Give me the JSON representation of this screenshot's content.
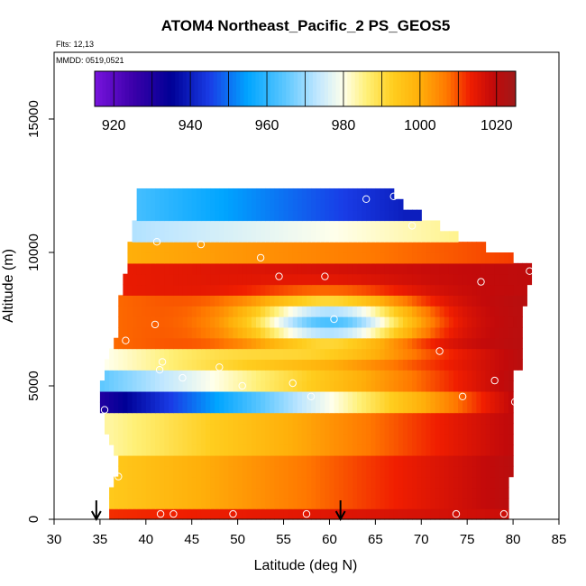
{
  "chart_data": {
    "type": "heatmap",
    "title": "ATOM4 Northeast_Pacific_2 PS_GEOS5",
    "flights_text": "Flts: 12,13",
    "dates_text": "MMDD: 0519,0521",
    "xlabel": "Latitude (deg N)",
    "ylabel": "Altitude (m)",
    "xlim": [
      30,
      85
    ],
    "ylim": [
      0,
      17500
    ],
    "x_ticks": [
      "30",
      "35",
      "40",
      "45",
      "50",
      "55",
      "60",
      "65",
      "70",
      "75",
      "80",
      "85"
    ],
    "y_ticks": [
      "0",
      "5000",
      "10000",
      "15000"
    ],
    "colorbar": {
      "range": [
        915,
        1025
      ],
      "tick_values": [
        920,
        940,
        960,
        980,
        1000,
        1020
      ],
      "tick_labels": [
        "920",
        "940",
        "960",
        "980",
        "1000",
        "1020"
      ],
      "divisions": [
        920,
        930,
        940,
        950,
        960,
        970,
        980,
        990,
        1000,
        1010,
        1020
      ]
    },
    "altitude_bins_m": [
      [
        0,
        400
      ],
      [
        400,
        800
      ],
      [
        800,
        1200
      ],
      [
        1200,
        1600
      ],
      [
        1600,
        2000
      ],
      [
        2000,
        2400
      ],
      [
        2400,
        2800
      ],
      [
        2800,
        3200
      ],
      [
        3200,
        3600
      ],
      [
        3600,
        4000
      ],
      [
        4000,
        4400
      ],
      [
        4400,
        4800
      ],
      [
        4800,
        5200
      ],
      [
        5200,
        5600
      ],
      [
        5600,
        6000
      ],
      [
        6000,
        6400
      ],
      [
        6400,
        6800
      ],
      [
        6800,
        7200
      ],
      [
        7200,
        7600
      ],
      [
        7600,
        8000
      ],
      [
        8000,
        8400
      ],
      [
        8400,
        8800
      ],
      [
        8800,
        9200
      ],
      [
        9200,
        9600
      ],
      [
        9600,
        10000
      ],
      [
        10000,
        10400
      ],
      [
        10400,
        10800
      ],
      [
        10800,
        11200
      ],
      [
        11200,
        11600
      ],
      [
        11600,
        12000
      ],
      [
        12000,
        12400
      ]
    ],
    "row_extents_deg": [
      [
        36,
        79.5
      ],
      [
        36,
        79.5
      ],
      [
        36,
        79.5
      ],
      [
        36.5,
        79.5
      ],
      [
        37,
        80
      ],
      [
        37,
        80
      ],
      [
        36.5,
        80
      ],
      [
        36,
        80
      ],
      [
        35.5,
        80
      ],
      [
        35.5,
        80
      ],
      [
        35,
        80
      ],
      [
        35,
        80
      ],
      [
        35,
        80
      ],
      [
        35.5,
        80
      ],
      [
        35.5,
        81
      ],
      [
        36,
        81
      ],
      [
        36.5,
        81
      ],
      [
        37,
        81
      ],
      [
        37,
        81
      ],
      [
        37,
        81
      ],
      [
        37,
        81.5
      ],
      [
        37.5,
        81.5
      ],
      [
        37.5,
        82
      ],
      [
        38,
        82
      ],
      [
        38,
        80
      ],
      [
        38,
        77
      ],
      [
        38.5,
        74
      ],
      [
        38.5,
        72
      ],
      [
        39,
        70
      ],
      [
        39,
        68
      ],
      [
        39,
        67
      ]
    ],
    "profiles": [
      {
        "alt_min": 0,
        "alt_max": 400,
        "lat_start": 36,
        "lat_end": 79.5,
        "ps_start": 1012,
        "ps_end": 1018
      },
      {
        "alt_min": 400,
        "alt_max": 2400,
        "lat_start": 36,
        "lat_end": 80,
        "ps_start": 994,
        "ps_end": 1021
      },
      {
        "alt_min": 2400,
        "alt_max": 4000,
        "lat_start": 36,
        "lat_end": 80,
        "ps_start": 984,
        "ps_end": 1020
      },
      {
        "alt_min": 4000,
        "alt_max": 4800,
        "lat_start": 35,
        "lat_end": 80,
        "ps_start": 930,
        "ps_end": 1020
      },
      {
        "alt_min": 4800,
        "alt_max": 5600,
        "lat_start": 35,
        "lat_end": 80,
        "ps_start": 965,
        "ps_end": 1021
      },
      {
        "alt_min": 5600,
        "alt_max": 6400,
        "lat_start": 35.5,
        "lat_end": 81,
        "ps_start": 980,
        "ps_end": 1021
      },
      {
        "alt_min": 6400,
        "alt_max": 8400,
        "lat_start": 36.5,
        "lat_end": 81,
        "ps_start": 1008,
        "ps_end": 1021
      },
      {
        "alt_min": 8400,
        "alt_max": 9600,
        "lat_start": 37.5,
        "lat_end": 82,
        "ps_start": 1014,
        "ps_end": 1020
      },
      {
        "alt_min": 9600,
        "alt_max": 10400,
        "lat_start": 38,
        "lat_end": 80,
        "ps_start": 1000,
        "ps_end": 1011
      },
      {
        "alt_min": 10400,
        "alt_max": 11200,
        "lat_start": 38.5,
        "lat_end": 74,
        "ps_start": 972,
        "ps_end": 985
      },
      {
        "alt_min": 11200,
        "alt_max": 12400,
        "lat_start": 39,
        "lat_end": 68,
        "ps_start": 962,
        "ps_end": 940
      }
    ],
    "low_pressure_core": {
      "lat": 60,
      "alt_m": 7400,
      "ps_min": 960
    },
    "samples": [
      {
        "lat": 35.5,
        "alt": 4100
      },
      {
        "lat": 37.0,
        "alt": 1600
      },
      {
        "lat": 37.8,
        "alt": 6700
      },
      {
        "lat": 41.0,
        "alt": 7300
      },
      {
        "lat": 41.2,
        "alt": 10400
      },
      {
        "lat": 41.5,
        "alt": 5600
      },
      {
        "lat": 41.8,
        "alt": 5900
      },
      {
        "lat": 41.6,
        "alt": 200
      },
      {
        "lat": 43.0,
        "alt": 200
      },
      {
        "lat": 44.0,
        "alt": 5300
      },
      {
        "lat": 46.0,
        "alt": 10300
      },
      {
        "lat": 48.0,
        "alt": 5700
      },
      {
        "lat": 49.5,
        "alt": 200
      },
      {
        "lat": 50.5,
        "alt": 5000
      },
      {
        "lat": 52.5,
        "alt": 9800
      },
      {
        "lat": 54.5,
        "alt": 9100
      },
      {
        "lat": 56.0,
        "alt": 5100
      },
      {
        "lat": 57.5,
        "alt": 200
      },
      {
        "lat": 58.0,
        "alt": 4600
      },
      {
        "lat": 59.5,
        "alt": 9100
      },
      {
        "lat": 60.5,
        "alt": 7500
      },
      {
        "lat": 64.0,
        "alt": 12000
      },
      {
        "lat": 67.0,
        "alt": 12100
      },
      {
        "lat": 69.0,
        "alt": 11000
      },
      {
        "lat": 72.0,
        "alt": 6300
      },
      {
        "lat": 73.8,
        "alt": 200
      },
      {
        "lat": 74.5,
        "alt": 4600
      },
      {
        "lat": 76.5,
        "alt": 8900
      },
      {
        "lat": 78.0,
        "alt": 5200
      },
      {
        "lat": 79.0,
        "alt": 200
      },
      {
        "lat": 80.2,
        "alt": 4400
      },
      {
        "lat": 81.8,
        "alt": 9300
      }
    ],
    "arrows_lat": [
      34.6,
      61.2
    ]
  }
}
